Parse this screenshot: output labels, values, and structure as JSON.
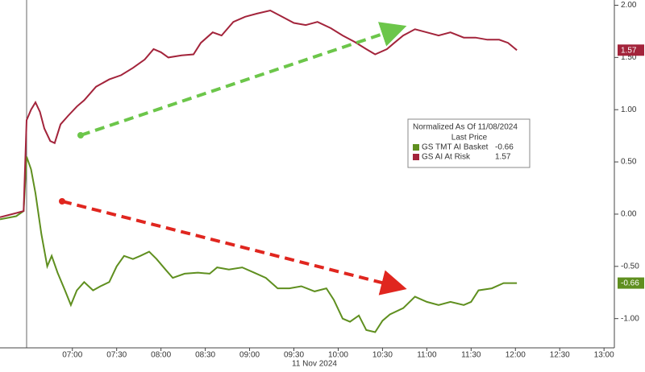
{
  "chart_data": {
    "type": "line",
    "legend_title": "Normalized As Of 11/08/2024",
    "legend_subtitle": "Last Price",
    "date_label": "11 Nov 2024",
    "xlim": [
      371,
      787
    ],
    "xticks": [
      {
        "value": 420,
        "label": "07:00"
      },
      {
        "value": 450,
        "label": "07:30"
      },
      {
        "value": 480,
        "label": "08:00"
      },
      {
        "value": 510,
        "label": "08:30"
      },
      {
        "value": 540,
        "label": "09:00"
      },
      {
        "value": 570,
        "label": "09:30"
      },
      {
        "value": 600,
        "label": "10:00"
      },
      {
        "value": 630,
        "label": "10:30"
      },
      {
        "value": 660,
        "label": "11:00"
      },
      {
        "value": 690,
        "label": "11:30"
      },
      {
        "value": 720,
        "label": "12:00"
      },
      {
        "value": 750,
        "label": "12:30"
      },
      {
        "value": 780,
        "label": "13:00"
      }
    ],
    "ylim": [
      -1.28,
      2.05
    ],
    "yticks": [
      {
        "value": -1,
        "label": "-1.00"
      },
      {
        "value": -0.5,
        "label": "-0.50"
      },
      {
        "value": 0,
        "label": "0.00"
      },
      {
        "value": 0.5,
        "label": "0.50"
      },
      {
        "value": 1,
        "label": "1.00"
      },
      {
        "value": 1.5,
        "label": "1.50"
      },
      {
        "value": 2,
        "label": "2.00"
      }
    ],
    "series": [
      {
        "name": "GS TMT AI Basket",
        "color": "#5f8f1f",
        "last_price": -0.66,
        "x": [
          371,
          382,
          387,
          389,
          392,
          395,
          399,
          403,
          406,
          410,
          415,
          419,
          423,
          428,
          434,
          439,
          445,
          450,
          455,
          461,
          466,
          472,
          477,
          483,
          488,
          496,
          505,
          513,
          518,
          526,
          535,
          543,
          551,
          559,
          567,
          575,
          584,
          592,
          597,
          603,
          608,
          614,
          619,
          625,
          630,
          635,
          644,
          652,
          660,
          668,
          676,
          685,
          690,
          695,
          704,
          712,
          721
        ],
        "values": [
          -0.05,
          -0.02,
          0.03,
          0.55,
          0.43,
          0.2,
          -0.19,
          -0.5,
          -0.4,
          -0.56,
          -0.73,
          -0.87,
          -0.73,
          -0.65,
          -0.73,
          -0.69,
          -0.65,
          -0.5,
          -0.4,
          -0.43,
          -0.4,
          -0.36,
          -0.43,
          -0.53,
          -0.61,
          -0.57,
          -0.56,
          -0.57,
          -0.51,
          -0.53,
          -0.51,
          -0.56,
          -0.61,
          -0.71,
          -0.71,
          -0.69,
          -0.74,
          -0.71,
          -0.82,
          -1.0,
          -1.03,
          -0.97,
          -1.11,
          -1.13,
          -1.02,
          -0.96,
          -0.9,
          -0.79,
          -0.84,
          -0.87,
          -0.84,
          -0.87,
          -0.84,
          -0.73,
          -0.71,
          -0.66,
          -0.66
        ]
      },
      {
        "name": "GS AI At Risk",
        "color": "#a3243b",
        "last_price": 1.57,
        "x": [
          371,
          382,
          387,
          389,
          392,
          395,
          398,
          401,
          405,
          408,
          412,
          417,
          423,
          428,
          436,
          445,
          453,
          461,
          469,
          475,
          480,
          485,
          494,
          502,
          507,
          515,
          521,
          529,
          537,
          545,
          554,
          562,
          570,
          578,
          586,
          595,
          603,
          611,
          619,
          625,
          633,
          638,
          644,
          652,
          660,
          668,
          676,
          685,
          693,
          701,
          709,
          715,
          721
        ],
        "values": [
          -0.03,
          0.01,
          0.03,
          0.9,
          1.0,
          1.07,
          0.98,
          0.82,
          0.7,
          0.68,
          0.86,
          0.94,
          1.03,
          1.09,
          1.22,
          1.29,
          1.33,
          1.4,
          1.48,
          1.58,
          1.55,
          1.5,
          1.52,
          1.53,
          1.64,
          1.74,
          1.71,
          1.84,
          1.89,
          1.92,
          1.95,
          1.89,
          1.83,
          1.81,
          1.84,
          1.78,
          1.71,
          1.65,
          1.58,
          1.53,
          1.58,
          1.64,
          1.71,
          1.77,
          1.74,
          1.71,
          1.74,
          1.69,
          1.69,
          1.67,
          1.67,
          1.64,
          1.57
        ]
      }
    ]
  }
}
